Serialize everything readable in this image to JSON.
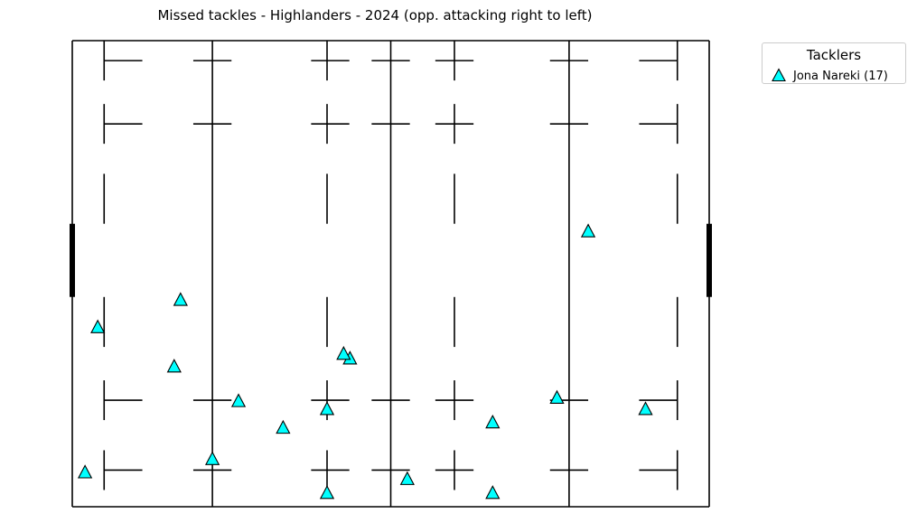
{
  "chart_data": {
    "type": "scatter",
    "title": "Missed tackles - Highlanders - 2024  (opp. attacking right to left)",
    "pitch": {
      "length": 100,
      "width": 70
    },
    "x_range": [
      0,
      100
    ],
    "y_range": [
      0,
      70
    ],
    "legend": {
      "title": "Tacklers",
      "placement": "outside-top-right"
    },
    "series": [
      {
        "name": "Jona Nareki (17)",
        "color": "#00ffff",
        "marker": "triangle",
        "points": [
          {
            "x": 81,
            "y": 41.3
          },
          {
            "x": 17,
            "y": 31
          },
          {
            "x": 4,
            "y": 26.9
          },
          {
            "x": 43.6,
            "y": 22.2
          },
          {
            "x": 42.6,
            "y": 22.9
          },
          {
            "x": 16,
            "y": 21
          },
          {
            "x": 76.1,
            "y": 16.3
          },
          {
            "x": 26.1,
            "y": 15.8
          },
          {
            "x": 40,
            "y": 14.6
          },
          {
            "x": 90,
            "y": 14.6
          },
          {
            "x": 66,
            "y": 12.6
          },
          {
            "x": 33.1,
            "y": 11.8
          },
          {
            "x": 22,
            "y": 7.1
          },
          {
            "x": 2,
            "y": 5.1
          },
          {
            "x": 52.6,
            "y": 4.1
          },
          {
            "x": 40,
            "y": 2
          },
          {
            "x": 66,
            "y": 2
          }
        ]
      }
    ]
  }
}
